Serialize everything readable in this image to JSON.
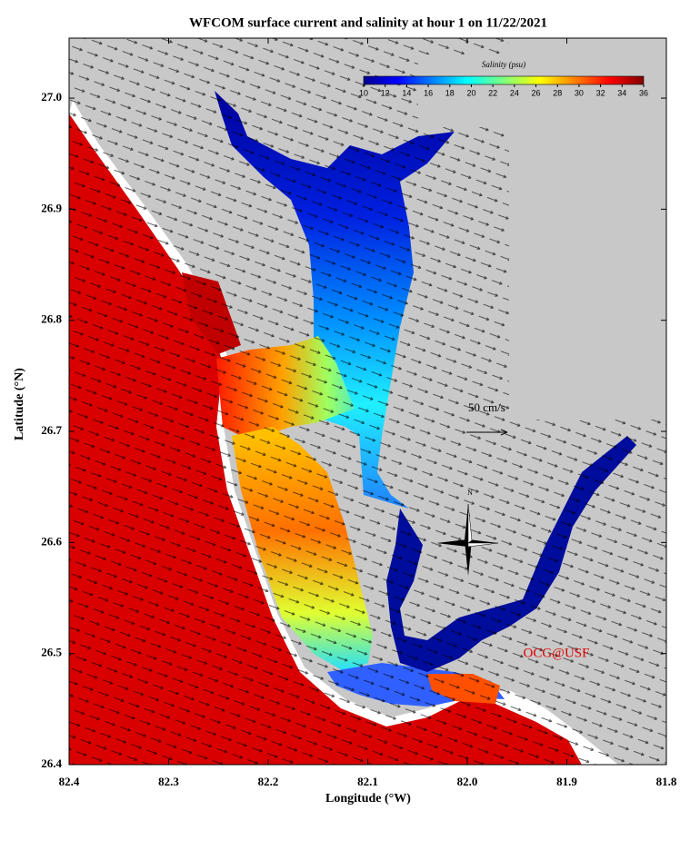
{
  "title": "WFCOM surface current and salinity at hour 1 on 11/22/2021",
  "x_axis": {
    "label": "Longitude (°W)",
    "lim": [
      82.4,
      81.8
    ],
    "ticks": [
      82.4,
      82.3,
      82.2,
      82.1,
      {
        "value": 82,
        "label": "82.0"
      },
      81.9,
      81.8
    ]
  },
  "y_axis": {
    "label": "Latitude (°N)",
    "lim": [
      26.4,
      27.054
    ],
    "ticks": [
      26.4,
      26.5,
      26.6,
      26.7,
      26.8,
      26.9,
      {
        "value": 27,
        "label": "27.0"
      }
    ]
  },
  "colorbar": {
    "label": "Salinity (psu)",
    "lim": [
      10,
      36
    ],
    "ticks": [
      10,
      12,
      14,
      16,
      18,
      20,
      22,
      24,
      26,
      28,
      30,
      32,
      34,
      36
    ]
  },
  "scale_arrow": {
    "label": "50 cm/s"
  },
  "compass": {
    "label": "N"
  },
  "credit": "OCG@USF"
}
